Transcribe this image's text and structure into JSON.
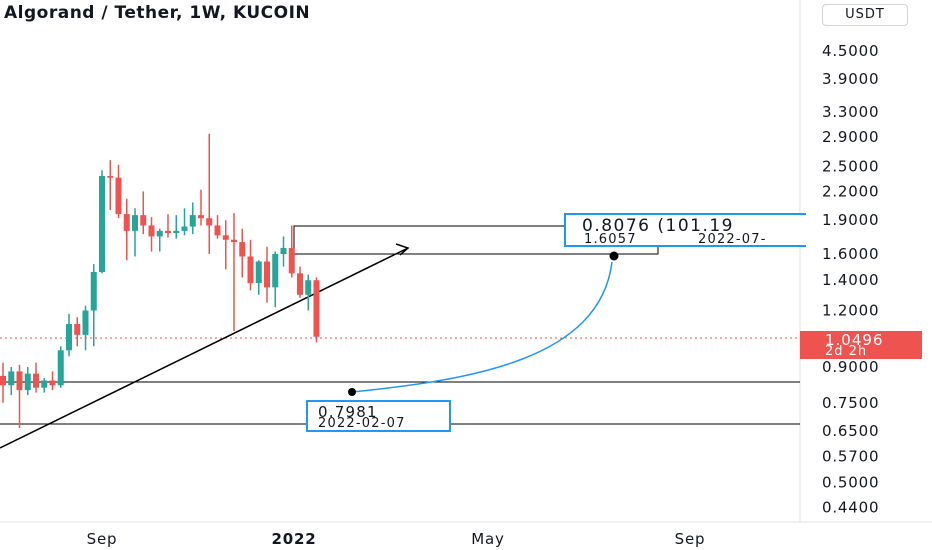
{
  "header": {
    "title": "Algorand / Tether, 1W, KUCOIN",
    "currency_button": "USDT"
  },
  "price_tag": {
    "price": "1.0496",
    "countdown": "2d 2h",
    "color": "#ef5350"
  },
  "annotations": {
    "target_label": {
      "line1": "0.8076 (101.19",
      "price": "1.6057",
      "date": "2022-07-",
      "border_color": "#2196f3"
    },
    "origin_label": {
      "price": "0.7981",
      "date": "2022-02-07",
      "border_color": "#2196f3"
    }
  },
  "colors": {
    "up": "#26a69a",
    "down": "#ef5350",
    "trendline": "#000000",
    "curve": "#2196f3",
    "price_line": "#ef5350"
  },
  "chart_data": {
    "type": "candlestick",
    "title": "Algorand / Tether, 1W, KUCOIN",
    "y_scale": "log",
    "y_ticks": [
      "4.5000",
      "3.9000",
      "3.3000",
      "2.9000",
      "2.5000",
      "2.2000",
      "1.9000",
      "1.6000",
      "1.4000",
      "1.2000",
      "0.9000",
      "0.7500",
      "0.6500",
      "0.5700",
      "0.5000",
      "0.4400"
    ],
    "x_ticks": [
      {
        "label": "Sep",
        "bold": false
      },
      {
        "label": "2022",
        "bold": true
      },
      {
        "label": "May",
        "bold": false
      },
      {
        "label": "Sep",
        "bold": false
      }
    ],
    "current_price": 1.0496,
    "candles": [
      {
        "o": 0.86,
        "h": 0.92,
        "l": 0.75,
        "c": 0.82
      },
      {
        "o": 0.82,
        "h": 0.9,
        "l": 0.78,
        "c": 0.88
      },
      {
        "o": 0.88,
        "h": 0.91,
        "l": 0.66,
        "c": 0.8
      },
      {
        "o": 0.8,
        "h": 0.9,
        "l": 0.78,
        "c": 0.87
      },
      {
        "o": 0.87,
        "h": 0.92,
        "l": 0.79,
        "c": 0.81
      },
      {
        "o": 0.81,
        "h": 0.85,
        "l": 0.79,
        "c": 0.84
      },
      {
        "o": 0.84,
        "h": 0.88,
        "l": 0.8,
        "c": 0.82
      },
      {
        "o": 0.82,
        "h": 1.0,
        "l": 0.81,
        "c": 0.98
      },
      {
        "o": 0.98,
        "h": 1.18,
        "l": 0.95,
        "c": 1.12
      },
      {
        "o": 1.12,
        "h": 1.16,
        "l": 1.0,
        "c": 1.06
      },
      {
        "o": 1.06,
        "h": 1.23,
        "l": 0.98,
        "c": 1.2
      },
      {
        "o": 1.2,
        "h": 1.52,
        "l": 1.0,
        "c": 1.46
      },
      {
        "o": 1.46,
        "h": 2.45,
        "l": 1.45,
        "c": 2.38
      },
      {
        "o": 2.38,
        "h": 2.58,
        "l": 2.0,
        "c": 2.36
      },
      {
        "o": 2.36,
        "h": 2.52,
        "l": 1.92,
        "c": 1.96
      },
      {
        "o": 1.96,
        "h": 2.12,
        "l": 1.55,
        "c": 1.8
      },
      {
        "o": 1.8,
        "h": 2.02,
        "l": 1.58,
        "c": 1.95
      },
      {
        "o": 1.95,
        "h": 2.2,
        "l": 1.77,
        "c": 1.85
      },
      {
        "o": 1.85,
        "h": 1.93,
        "l": 1.62,
        "c": 1.75
      },
      {
        "o": 1.75,
        "h": 1.82,
        "l": 1.62,
        "c": 1.8
      },
      {
        "o": 1.8,
        "h": 1.96,
        "l": 1.74,
        "c": 1.78
      },
      {
        "o": 1.78,
        "h": 1.95,
        "l": 1.73,
        "c": 1.8
      },
      {
        "o": 1.8,
        "h": 2.02,
        "l": 1.76,
        "c": 1.84
      },
      {
        "o": 1.84,
        "h": 2.08,
        "l": 1.77,
        "c": 1.95
      },
      {
        "o": 1.95,
        "h": 2.22,
        "l": 1.85,
        "c": 1.92
      },
      {
        "o": 1.92,
        "h": 2.95,
        "l": 1.6,
        "c": 1.85
      },
      {
        "o": 1.85,
        "h": 1.95,
        "l": 1.73,
        "c": 1.76
      },
      {
        "o": 1.76,
        "h": 1.9,
        "l": 1.48,
        "c": 1.72
      },
      {
        "o": 1.72,
        "h": 1.97,
        "l": 1.08,
        "c": 1.7
      },
      {
        "o": 1.7,
        "h": 1.82,
        "l": 1.42,
        "c": 1.58
      },
      {
        "o": 1.58,
        "h": 1.72,
        "l": 1.33,
        "c": 1.38
      },
      {
        "o": 1.38,
        "h": 1.55,
        "l": 1.3,
        "c": 1.54
      },
      {
        "o": 1.54,
        "h": 1.66,
        "l": 1.25,
        "c": 1.35
      },
      {
        "o": 1.35,
        "h": 1.62,
        "l": 1.22,
        "c": 1.6
      },
      {
        "o": 1.6,
        "h": 1.75,
        "l": 1.5,
        "c": 1.65
      },
      {
        "o": 1.65,
        "h": 1.85,
        "l": 1.42,
        "c": 1.45
      },
      {
        "o": 1.45,
        "h": 1.5,
        "l": 1.28,
        "c": 1.3
      },
      {
        "o": 1.3,
        "h": 1.44,
        "l": 1.2,
        "c": 1.4
      },
      {
        "o": 1.4,
        "h": 1.42,
        "l": 1.02,
        "c": 1.05
      }
    ]
  }
}
